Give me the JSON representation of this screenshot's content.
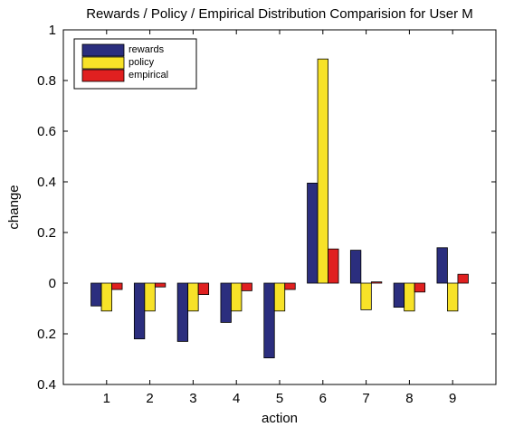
{
  "chart_data": {
    "type": "bar",
    "title": "Rewards / Policy / Empirical Distribution Comparision for User M",
    "xlabel": "action",
    "ylabel": "change",
    "categories": [
      "1",
      "2",
      "3",
      "4",
      "5",
      "6",
      "7",
      "8",
      "9"
    ],
    "yticks": [
      {
        "value": 1,
        "label": "1"
      },
      {
        "value": 0.8,
        "label": "0.8"
      },
      {
        "value": 0.6,
        "label": "0.6"
      },
      {
        "value": 0.4,
        "label": "0.4"
      },
      {
        "value": 0.2,
        "label": "0.2"
      },
      {
        "value": 0,
        "label": "0"
      },
      {
        "value": -0.2,
        "label": "0.2"
      },
      {
        "value": -0.4,
        "label": "0.4"
      }
    ],
    "ylim": [
      -0.4,
      1
    ],
    "xlim": [
      0,
      10
    ],
    "grid": false,
    "legend_position": "top-left",
    "series": [
      {
        "name": "rewards",
        "color": "#2b2e7e",
        "values": [
          -0.09,
          -0.22,
          -0.23,
          -0.155,
          -0.295,
          0.395,
          0.13,
          -0.095,
          0.14
        ]
      },
      {
        "name": "policy",
        "color": "#f7e228",
        "values": [
          -0.11,
          -0.11,
          -0.11,
          -0.11,
          -0.11,
          0.885,
          -0.105,
          -0.11,
          -0.11
        ]
      },
      {
        "name": "empirical",
        "color": "#e02020",
        "values": [
          -0.025,
          -0.015,
          -0.045,
          -0.03,
          -0.025,
          0.135,
          0.005,
          -0.035,
          0.035
        ]
      }
    ]
  }
}
